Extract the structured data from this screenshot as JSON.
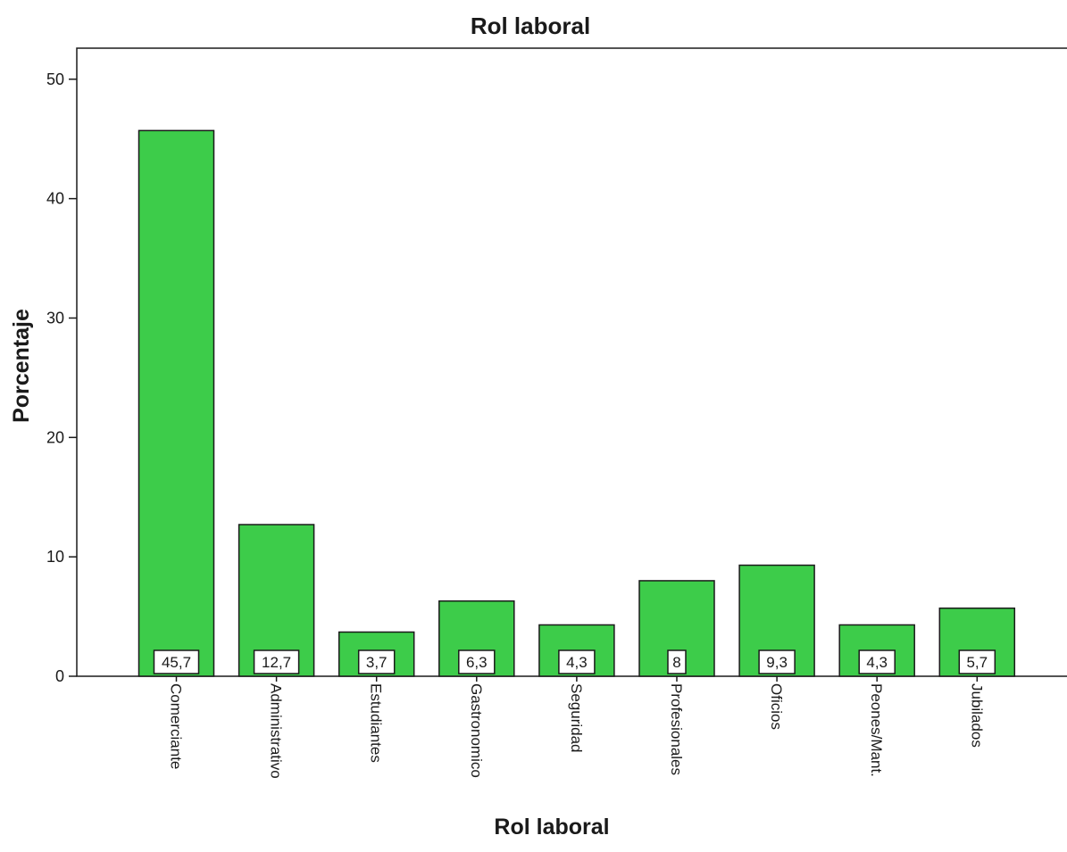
{
  "chart_data": {
    "type": "bar",
    "title": "Rol laboral",
    "xlabel": "Rol laboral",
    "ylabel": "Porcentaje",
    "categories": [
      "Comerciante",
      "Administrativo",
      "Estudiantes",
      "Gastronomico",
      "Seguridad",
      "Profesionales",
      "Oficios",
      "Peones/Mant.",
      "Jubilados"
    ],
    "values": [
      45.7,
      12.7,
      3.7,
      6.3,
      4.3,
      8,
      9.3,
      4.3,
      5.7
    ],
    "data_labels": [
      "45,7",
      "12,7",
      "3,7",
      "6,3",
      "4,3",
      "8",
      "9,3",
      "4,3",
      "5,7"
    ],
    "yticks": [
      0,
      10,
      20,
      30,
      40,
      50
    ],
    "ylim": [
      0,
      52.6
    ],
    "grid": false,
    "bar_color": "#3dcc4a",
    "bar_edge_color": "#1a1a1a"
  }
}
